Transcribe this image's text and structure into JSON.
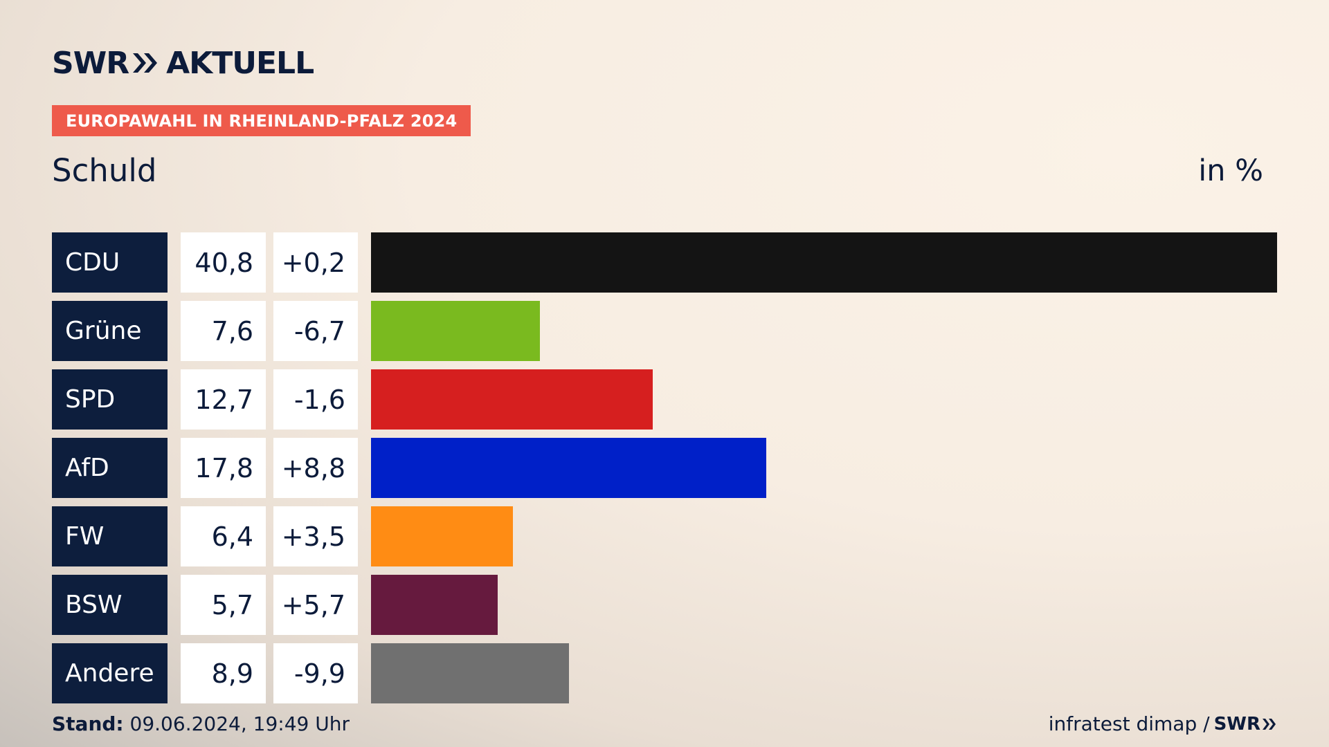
{
  "header": {
    "brand_left": "SWR",
    "brand_right": "AKTUELL",
    "banner": "EUROPAWAHL IN RHEINLAND-PFALZ 2024",
    "subtitle": "Schuld",
    "unit": "in %"
  },
  "colors": {
    "banner": "#ee5a4b",
    "label_bg": "#0d1e3d"
  },
  "chart_data": {
    "type": "bar",
    "orientation": "horizontal",
    "title": "Schuld",
    "unit": "in %",
    "categories": [
      "CDU",
      "Grüne",
      "SPD",
      "AfD",
      "FW",
      "BSW",
      "Andere"
    ],
    "values": [
      40.8,
      7.6,
      12.7,
      17.8,
      6.4,
      5.7,
      8.9
    ],
    "value_labels": [
      "40,8",
      "7,6",
      "12,7",
      "17,8",
      "6,4",
      "5,7",
      "8,9"
    ],
    "differences": [
      "+0,2",
      "-6,7",
      "-1,6",
      "+8,8",
      "+3,5",
      "+5,7",
      "-9,9"
    ],
    "bar_colors": [
      "#141414",
      "#7aba1f",
      "#d61f1f",
      "#0020c8",
      "#ff8c14",
      "#661a3e",
      "#707070"
    ],
    "xlim": [
      0,
      40.8
    ],
    "grid": false,
    "legend": "none"
  },
  "footer": {
    "stand_label": "Stand:",
    "stand_value": "09.06.2024, 19:49 Uhr",
    "source": "infratest dimap /",
    "source_brand": "SWR"
  }
}
